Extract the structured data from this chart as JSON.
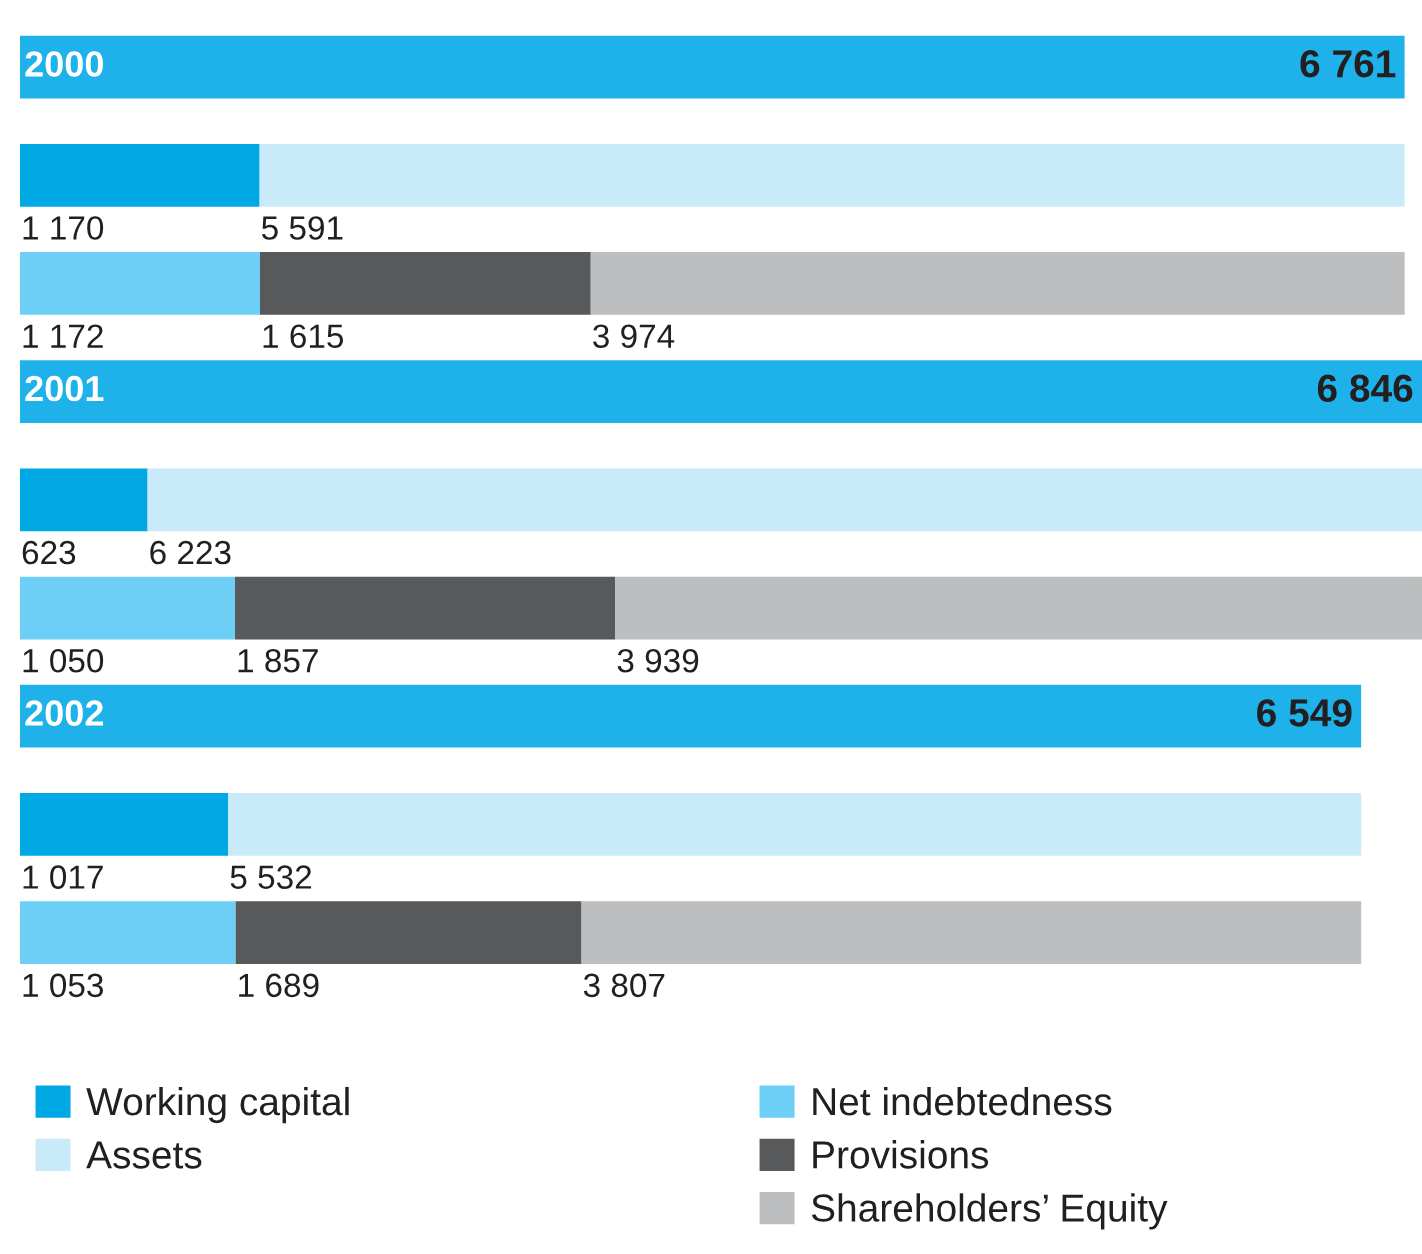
{
  "chart_data": {
    "type": "bar",
    "orientation": "horizontal",
    "stacked": true,
    "xlim": [
      0,
      6846
    ],
    "legend": "bottom",
    "categories": [
      "2000",
      null,
      null,
      "2001",
      null,
      null,
      "2002",
      null,
      null
    ],
    "series": [
      {
        "color": "#1fb2ea",
        "values": [
          6761,
          null,
          null,
          6846,
          null,
          null,
          6549,
          null,
          null
        ],
        "value_labels": [
          "6 761",
          null,
          null,
          "6 846",
          null,
          null,
          "6 549",
          null,
          null
        ]
      },
      {
        "name": "Working capital",
        "color": "#00a9e3",
        "values": [
          null,
          1170,
          null,
          null,
          623,
          null,
          null,
          1017,
          null
        ],
        "value_labels": [
          null,
          "1 170",
          null,
          null,
          "623",
          null,
          null,
          "1 017",
          null
        ]
      },
      {
        "name": "Assets",
        "color": "#c9eaf8",
        "values": [
          null,
          5591,
          null,
          null,
          6223,
          null,
          null,
          5532,
          null
        ],
        "value_labels": [
          null,
          "5 591",
          null,
          null,
          "6 223",
          null,
          null,
          "5 532",
          null
        ]
      },
      {
        "name": "Net indebtedness",
        "color": "#6dcff6",
        "values": [
          null,
          null,
          1172,
          null,
          null,
          1050,
          null,
          null,
          1053
        ],
        "value_labels": [
          null,
          null,
          "1 172",
          null,
          null,
          "1 050",
          null,
          null,
          "1 053"
        ]
      },
      {
        "name": "Provisions",
        "color": "#58595b",
        "values": [
          null,
          null,
          1615,
          null,
          null,
          1857,
          null,
          null,
          1689
        ],
        "value_labels": [
          null,
          null,
          "1 615",
          null,
          null,
          "1 857",
          null,
          null,
          "1 689"
        ]
      },
      {
        "name": "Shareholders’ Equity",
        "color": "#bcbec0",
        "values": [
          null,
          null,
          3974,
          null,
          null,
          3939,
          null,
          null,
          3807
        ],
        "value_labels": [
          null,
          null,
          "3 974",
          null,
          null,
          "3 939",
          null,
          null,
          "3 807"
        ]
      }
    ]
  }
}
